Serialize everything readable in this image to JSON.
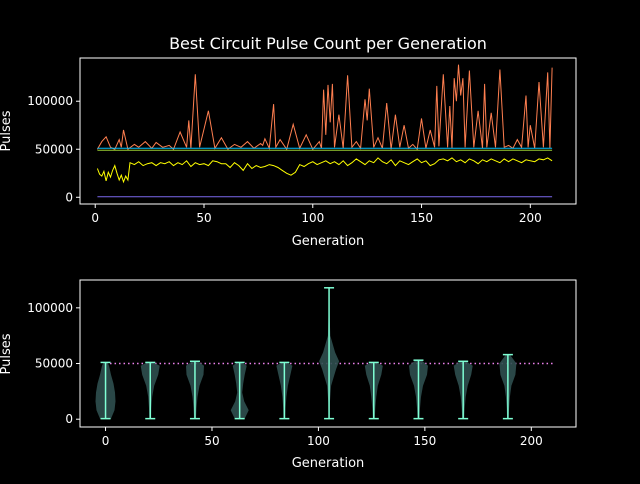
{
  "chart_data": [
    {
      "type": "line",
      "title": "Best Circuit Pulse Count per Generation",
      "xlabel": "Generation",
      "ylabel": "Pulses",
      "xlim": [
        -7,
        221
      ],
      "ylim": [
        -7000,
        145000
      ],
      "x_ticks": [
        0,
        50,
        100,
        150,
        200
      ],
      "y_ticks": [
        0,
        50000,
        100000
      ],
      "x_tick_labels": [
        "0",
        "50",
        "100",
        "150",
        "200"
      ],
      "y_tick_labels": [
        "0",
        "50000",
        "100000"
      ],
      "grid": false,
      "series": [
        {
          "color": "#ff7f50",
          "x": [
            1,
            3,
            5,
            7,
            9,
            11,
            12,
            13,
            15,
            18,
            20,
            23,
            26,
            28,
            31,
            34,
            36,
            39,
            42,
            43,
            44,
            46,
            48,
            52,
            55,
            58,
            61,
            64,
            67,
            70,
            73,
            76,
            77,
            78,
            80,
            82,
            83,
            85,
            88,
            91,
            94,
            97,
            100,
            103,
            104,
            105,
            106,
            107,
            108,
            109,
            110,
            112,
            114,
            116,
            118,
            120,
            122,
            124,
            125,
            126,
            128,
            130,
            132,
            134,
            136,
            138,
            140,
            142,
            144,
            146,
            148,
            150,
            152,
            154,
            156,
            157,
            158,
            160,
            162,
            163,
            164,
            165,
            166,
            167,
            168,
            169,
            170,
            172,
            174,
            176,
            178,
            179,
            180,
            182,
            184,
            186,
            188,
            190,
            192,
            194,
            196,
            198,
            199,
            200,
            202,
            204,
            206,
            208,
            209,
            210
          ],
          "values": [
            50000,
            58000,
            63000,
            52000,
            50000,
            60000,
            52000,
            70000,
            50000,
            55000,
            52000,
            58000,
            51000,
            57000,
            52000,
            54000,
            50000,
            68000,
            52000,
            80000,
            51000,
            128000,
            52000,
            90000,
            51000,
            62000,
            50000,
            55000,
            52000,
            58000,
            51000,
            56000,
            54000,
            61000,
            51000,
            97000,
            52000,
            60000,
            50000,
            76000,
            51000,
            65000,
            50000,
            58000,
            51000,
            112000,
            65000,
            117000,
            78000,
            118000,
            52000,
            86000,
            51000,
            127000,
            52000,
            58000,
            51000,
            102000,
            80000,
            113000,
            52000,
            62000,
            51000,
            98000,
            50000,
            86000,
            52000,
            75000,
            51000,
            55000,
            50000,
            82000,
            51000,
            70000,
            52000,
            116000,
            53000,
            128000,
            52000,
            95000,
            51000,
            124000,
            100000,
            138000,
            106000,
            124000,
            52000,
            132000,
            52000,
            90000,
            51000,
            118000,
            52000,
            88000,
            52000,
            133000,
            52000,
            54000,
            51000,
            60000,
            52000,
            106000,
            52000,
            75000,
            51000,
            120000,
            52000,
            130000,
            51000,
            135000
          ]
        },
        {
          "color": "#ffff00",
          "x": [
            1,
            2,
            3,
            4,
            5,
            6,
            7,
            8,
            9,
            10,
            11,
            12,
            13,
            14,
            15,
            16,
            18,
            20,
            22,
            24,
            26,
            28,
            30,
            32,
            34,
            36,
            38,
            40,
            42,
            44,
            46,
            48,
            50,
            52,
            54,
            56,
            58,
            60,
            62,
            64,
            66,
            68,
            70,
            72,
            74,
            76,
            78,
            80,
            82,
            84,
            86,
            88,
            90,
            92,
            94,
            96,
            98,
            100,
            102,
            104,
            106,
            108,
            110,
            112,
            114,
            116,
            118,
            120,
            122,
            124,
            126,
            128,
            130,
            132,
            134,
            136,
            138,
            140,
            142,
            144,
            146,
            148,
            150,
            152,
            154,
            156,
            158,
            160,
            162,
            164,
            166,
            168,
            170,
            172,
            174,
            176,
            178,
            180,
            182,
            184,
            186,
            188,
            190,
            192,
            194,
            196,
            198,
            200,
            202,
            204,
            206,
            208,
            210
          ],
          "values": [
            30000,
            24000,
            22000,
            27000,
            17000,
            26000,
            21000,
            28000,
            33000,
            25000,
            18000,
            23000,
            16000,
            22000,
            18000,
            36000,
            34000,
            37000,
            33000,
            35000,
            36000,
            33000,
            36000,
            35000,
            37000,
            33000,
            36000,
            34000,
            38000,
            32000,
            36000,
            34000,
            35000,
            33000,
            38000,
            37000,
            35000,
            35000,
            31000,
            36000,
            33000,
            28000,
            35000,
            30000,
            33000,
            31000,
            32000,
            34000,
            33000,
            31000,
            28000,
            25000,
            23000,
            26000,
            34000,
            32000,
            35000,
            37000,
            34000,
            36000,
            38000,
            35000,
            37000,
            34000,
            38000,
            33000,
            36000,
            40000,
            37000,
            34000,
            38000,
            36000,
            41000,
            37000,
            35000,
            39000,
            33000,
            38000,
            36000,
            34000,
            37000,
            40000,
            36000,
            38000,
            33000,
            35000,
            39000,
            40000,
            38000,
            41000,
            37000,
            39000,
            36000,
            40000,
            38000,
            35000,
            39000,
            37000,
            40000,
            38000,
            36000,
            40000,
            37000,
            40000,
            38000,
            36000,
            39000,
            38000,
            37000,
            40000,
            39000,
            41000,
            38000
          ]
        },
        {
          "color": "#9acd32",
          "x": [
            1,
            210
          ],
          "values": [
            49000,
            49000
          ]
        },
        {
          "color": "#00bfff",
          "x": [
            1,
            210
          ],
          "values": [
            51000,
            51000
          ]
        },
        {
          "color": "#7b68ee",
          "x": [
            1,
            210
          ],
          "values": [
            500,
            500
          ]
        }
      ]
    },
    {
      "type": "violin",
      "xlabel": "Generation",
      "ylabel": "Pulses",
      "xlim": [
        -12,
        221
      ],
      "ylim": [
        -7000,
        125000
      ],
      "x_ticks": [
        0,
        50,
        100,
        150,
        200
      ],
      "y_ticks": [
        0,
        50000,
        100000
      ],
      "x_tick_labels": [
        "0",
        "50",
        "100",
        "150",
        "200"
      ],
      "y_tick_labels": [
        "0",
        "50000",
        "100000"
      ],
      "grid": false,
      "reference_line": {
        "value": 50000,
        "color": "#ee82ee",
        "style": "dotted",
        "x_range": [
          0,
          210
        ]
      },
      "violins": [
        {
          "position": 0,
          "min": 500,
          "max": 51000,
          "density_y": [
            500,
            8000,
            16000,
            24000,
            32000,
            40000,
            48000,
            51000
          ],
          "density_w": [
            0.55,
            0.9,
            1.0,
            0.95,
            0.8,
            0.55,
            0.35,
            0.2
          ]
        },
        {
          "position": 21,
          "min": 500,
          "max": 51000,
          "density_y": [
            500,
            10000,
            20000,
            30000,
            40000,
            48000,
            51000
          ],
          "density_w": [
            0.1,
            0.12,
            0.2,
            0.4,
            0.8,
            0.95,
            0.3
          ]
        },
        {
          "position": 42,
          "min": 500,
          "max": 52000,
          "density_y": [
            500,
            10000,
            20000,
            30000,
            40000,
            48000,
            52000
          ],
          "density_w": [
            0.1,
            0.15,
            0.25,
            0.45,
            0.85,
            0.9,
            0.3
          ]
        },
        {
          "position": 63,
          "min": 500,
          "max": 51000,
          "density_y": [
            500,
            8000,
            16000,
            24000,
            32000,
            40000,
            48000,
            51000
          ],
          "density_w": [
            0.5,
            0.9,
            0.45,
            0.25,
            0.35,
            0.5,
            0.7,
            0.25
          ]
        },
        {
          "position": 84,
          "min": 500,
          "max": 51000,
          "density_y": [
            500,
            10000,
            20000,
            30000,
            40000,
            48000,
            51000
          ],
          "density_w": [
            0.1,
            0.12,
            0.2,
            0.35,
            0.6,
            0.8,
            0.3
          ]
        },
        {
          "position": 105,
          "min": 500,
          "max": 118000,
          "density_y": [
            500,
            15000,
            30000,
            45000,
            52000,
            60000,
            75000,
            95000,
            118000
          ],
          "density_w": [
            0.05,
            0.08,
            0.2,
            0.7,
            1.0,
            0.6,
            0.12,
            0.05,
            0.02
          ]
        },
        {
          "position": 126,
          "min": 500,
          "max": 51000,
          "density_y": [
            500,
            10000,
            20000,
            30000,
            40000,
            48000,
            51000
          ],
          "density_w": [
            0.1,
            0.15,
            0.25,
            0.4,
            0.75,
            0.9,
            0.3
          ]
        },
        {
          "position": 147,
          "min": 500,
          "max": 53000,
          "density_y": [
            500,
            10000,
            20000,
            30000,
            40000,
            48000,
            53000
          ],
          "density_w": [
            0.1,
            0.15,
            0.25,
            0.45,
            0.85,
            0.95,
            0.3
          ]
        },
        {
          "position": 168,
          "min": 500,
          "max": 52000,
          "density_y": [
            500,
            10000,
            20000,
            30000,
            40000,
            48000,
            52000
          ],
          "density_w": [
            0.1,
            0.15,
            0.25,
            0.45,
            0.8,
            0.95,
            0.3
          ]
        },
        {
          "position": 189,
          "min": 500,
          "max": 58000,
          "density_y": [
            500,
            10000,
            20000,
            30000,
            40000,
            50000,
            58000
          ],
          "density_w": [
            0.08,
            0.12,
            0.2,
            0.35,
            0.75,
            0.85,
            0.2
          ]
        }
      ],
      "violin_fill": "#2f4f4f",
      "violin_stroke": "#7fffd4"
    }
  ]
}
